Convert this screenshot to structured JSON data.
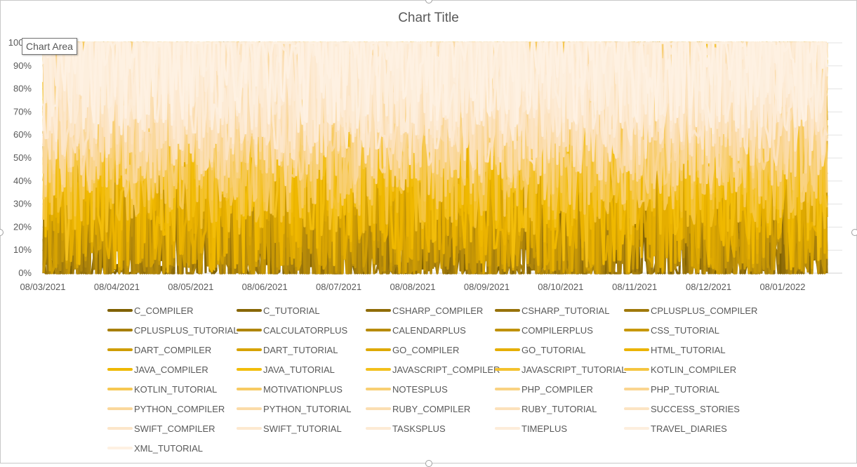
{
  "chart_area": {
    "tooltip": "Chart Area"
  },
  "chart_data": {
    "type": "line",
    "title": "Chart Title",
    "xlabel": "",
    "ylabel": "",
    "y_tick_labels": [
      "0%",
      "10%",
      "20%",
      "30%",
      "40%",
      "50%",
      "60%",
      "70%",
      "80%",
      "90%",
      "100%"
    ],
    "x_tick_labels": [
      "08/03/2021",
      "08/04/2021",
      "08/05/2021",
      "08/06/2021",
      "08/07/2021",
      "08/08/2021",
      "08/09/2021",
      "08/10/2021",
      "08/11/2021",
      "08/12/2021",
      "08/01/2022"
    ],
    "ylim": [
      0,
      1
    ],
    "grid": true,
    "legend_position": "bottom",
    "series": [
      {
        "name": "C_COMPILER",
        "color": "#7F6000"
      },
      {
        "name": "C_TUTORIAL",
        "color": "#876605"
      },
      {
        "name": "CSHARP_COMPILER",
        "color": "#8F6C08"
      },
      {
        "name": "CSHARP_TUTORIAL",
        "color": "#97720A"
      },
      {
        "name": "CPLUSPLUS_COMPILER",
        "color": "#9F790B"
      },
      {
        "name": "CPLUSPLUS_TUTORIAL",
        "color": "#A77F0B"
      },
      {
        "name": "CALCULATORPLUS",
        "color": "#AF850A"
      },
      {
        "name": "CALENDARPLUS",
        "color": "#B78B09"
      },
      {
        "name": "COMPILERPLUS",
        "color": "#BF9107"
      },
      {
        "name": "CSS_TUTORIAL",
        "color": "#C79705"
      },
      {
        "name": "DART_COMPILER",
        "color": "#CF9D03"
      },
      {
        "name": "DART_TUTORIAL",
        "color": "#D7A302"
      },
      {
        "name": "GO_COMPILER",
        "color": "#DEA901"
      },
      {
        "name": "GO_TUTORIAL",
        "color": "#E5AE00"
      },
      {
        "name": "HTML_TUTORIAL",
        "color": "#EBB300"
      },
      {
        "name": "JAVA_COMPILER",
        "color": "#EFB800"
      },
      {
        "name": "JAVA_TUTORIAL",
        "color": "#F2BD0A"
      },
      {
        "name": "JAVASCRIPT_COMPILER",
        "color": "#F3C01C"
      },
      {
        "name": "JAVASCRIPT_TUTORIAL",
        "color": "#F4C22E"
      },
      {
        "name": "KOTLIN_COMPILER",
        "color": "#F5C540"
      },
      {
        "name": "KOTLIN_TUTORIAL",
        "color": "#F6C852"
      },
      {
        "name": "MOTIVATIONPLUS",
        "color": "#F7CB63"
      },
      {
        "name": "NOTESPLUS",
        "color": "#F8CF73"
      },
      {
        "name": "PHP_COMPILER",
        "color": "#F9D282"
      },
      {
        "name": "PHP_TUTORIAL",
        "color": "#FAD590"
      },
      {
        "name": "PYTHON_COMPILER",
        "color": "#FAD89C"
      },
      {
        "name": "PYTHON_TUTORIAL",
        "color": "#FBDBA8"
      },
      {
        "name": "RUBY_COMPILER",
        "color": "#FBDEB2"
      },
      {
        "name": "RUBY_TUTORIAL",
        "color": "#FCE1BB"
      },
      {
        "name": "SUCCESS_STORIES",
        "color": "#FCE4C3"
      },
      {
        "name": "SWIFT_COMPILER",
        "color": "#FCE6CA"
      },
      {
        "name": "SWIFT_TUTORIAL",
        "color": "#FDE9D0"
      },
      {
        "name": "TASKSPLUS",
        "color": "#FDEBD5"
      },
      {
        "name": "TIMEPLUS",
        "color": "#FDEDDA"
      },
      {
        "name": "TRAVEL_DIARIES",
        "color": "#FDEFDE"
      },
      {
        "name": "XML_TUTORIAL",
        "color": "#FEF1E2"
      }
    ]
  }
}
